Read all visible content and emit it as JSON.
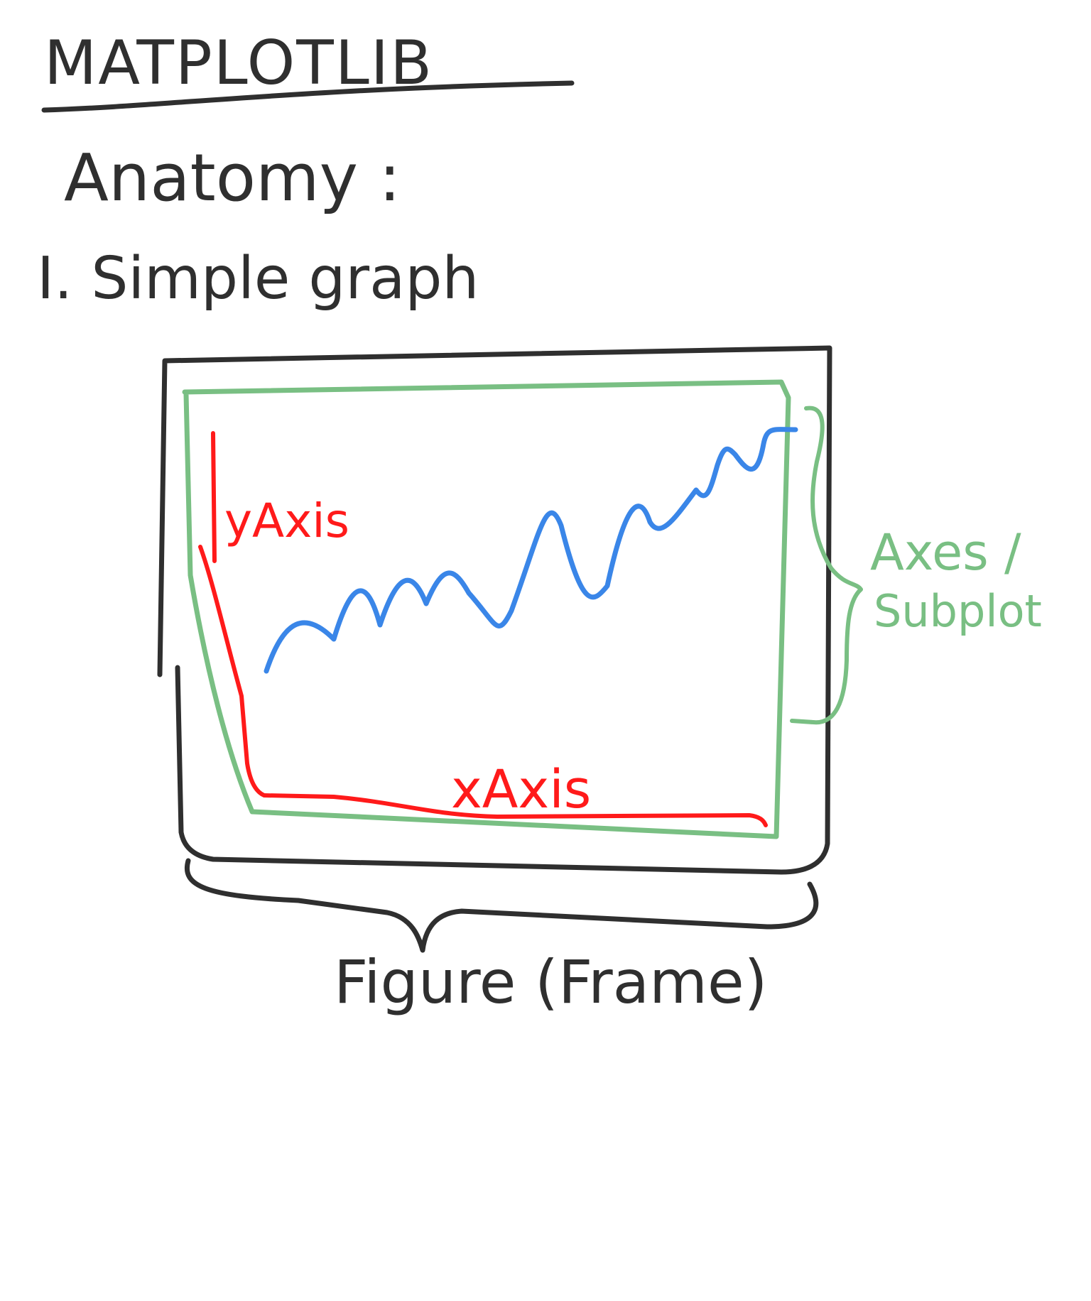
{
  "title": "MATPLOTLIB",
  "subtitle": "Anatomy :",
  "section": "I. Simple graph",
  "labels": {
    "y_axis": "yAxis",
    "x_axis": "xAxis",
    "axes_line1": "Axes /",
    "axes_line2": "Subplot",
    "figure": "Figure (Frame)"
  },
  "colors": {
    "ink": "#2f2f2f",
    "axes": "#79bf83",
    "axis": "#ff1a1a",
    "line": "#3a86e8"
  }
}
